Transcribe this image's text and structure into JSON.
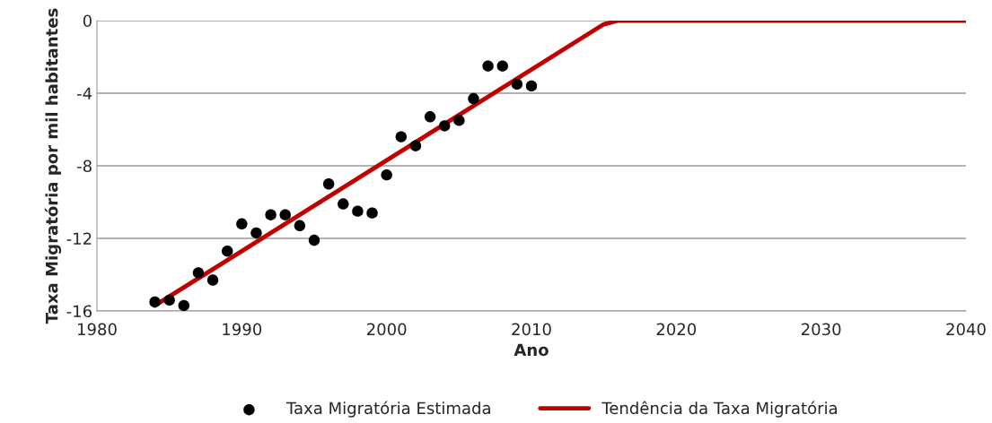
{
  "chart_data": {
    "type": "scatter",
    "xlabel": "Ano",
    "ylabel": "Taxa Migratória por mil habitantes",
    "xlim": [
      1980,
      2040
    ],
    "xticks": [
      1980,
      1990,
      2000,
      2010,
      2020,
      2030,
      2040
    ],
    "ylim": [
      -16,
      0
    ],
    "yticks": [
      -16,
      -12,
      -8,
      -4,
      0
    ],
    "grid": "y",
    "legend": "bottom",
    "series": [
      {
        "name": "Taxa Migratória Estimada",
        "color": "#000000",
        "marker": "circle",
        "x": [
          1984,
          1985,
          1986,
          1987,
          1988,
          1989,
          1990,
          1991,
          1992,
          1993,
          1994,
          1995,
          1996,
          1997,
          1998,
          1999,
          2000,
          2001,
          2002,
          2003,
          2004,
          2005,
          2006,
          2007,
          2008,
          2009,
          2010
        ],
        "values": [
          -15.5,
          -15.4,
          -15.7,
          -13.9,
          -14.3,
          -12.7,
          -11.2,
          -11.7,
          -10.7,
          -10.7,
          -11.3,
          -12.1,
          -9.0,
          -10.1,
          -10.5,
          -10.6,
          -8.5,
          -6.4,
          -6.9,
          -5.3,
          -5.8,
          -5.5,
          -4.3,
          -2.5,
          -2.5,
          -3.5,
          -3.6
        ]
      },
      {
        "name": "Tendência da Taxa Migratória",
        "type": "line",
        "color": "#c00000",
        "x": [
          1984,
          2015,
          2016,
          2040
        ],
        "values": [
          -15.7,
          -0.2,
          0,
          0
        ]
      }
    ]
  }
}
